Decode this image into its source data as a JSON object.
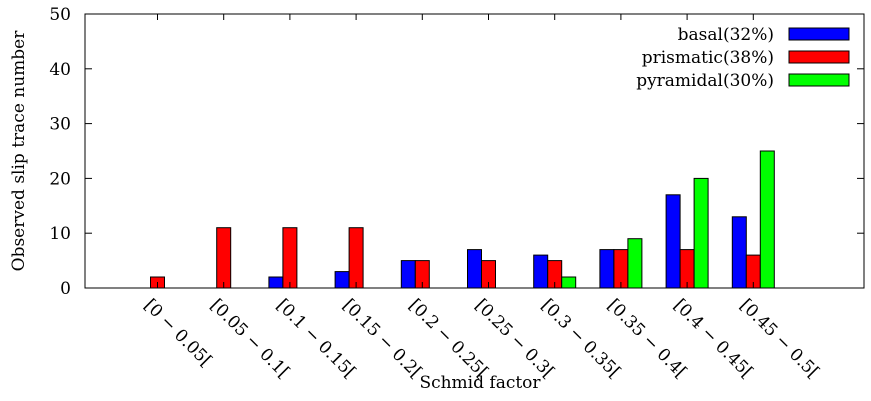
{
  "chart_data": {
    "type": "bar",
    "title": "",
    "xlabel": "Schmid factor",
    "ylabel": "Observed slip trace number",
    "ylim": [
      0,
      50
    ],
    "yticks": [
      0,
      10,
      20,
      30,
      40,
      50
    ],
    "grid": false,
    "legend_position": "top-right",
    "categories": [
      "[0 − 0.05[",
      "[0.05 − 0.1[",
      "[0.1 − 0.15[",
      "[0.15 − 0.2[",
      "[0.2 − 0.25[",
      "[0.25 − 0.3[",
      "[0.3 − 0.35[",
      "[0.35 − 0.4[",
      "[0.4 − 0.45[",
      "[0.45 − 0.5["
    ],
    "series": [
      {
        "name": "basal(32%)",
        "color": "#0000ff",
        "values": [
          0,
          0,
          2,
          3,
          5,
          7,
          6,
          7,
          17,
          13
        ]
      },
      {
        "name": "prismatic(38%)",
        "color": "#ff0000",
        "values": [
          2,
          11,
          11,
          11,
          5,
          5,
          5,
          7,
          7,
          6
        ]
      },
      {
        "name": "pyramidal(30%)",
        "color": "#00ff00",
        "values": [
          0,
          0,
          0,
          0,
          0,
          0,
          2,
          9,
          20,
          25
        ]
      }
    ]
  }
}
